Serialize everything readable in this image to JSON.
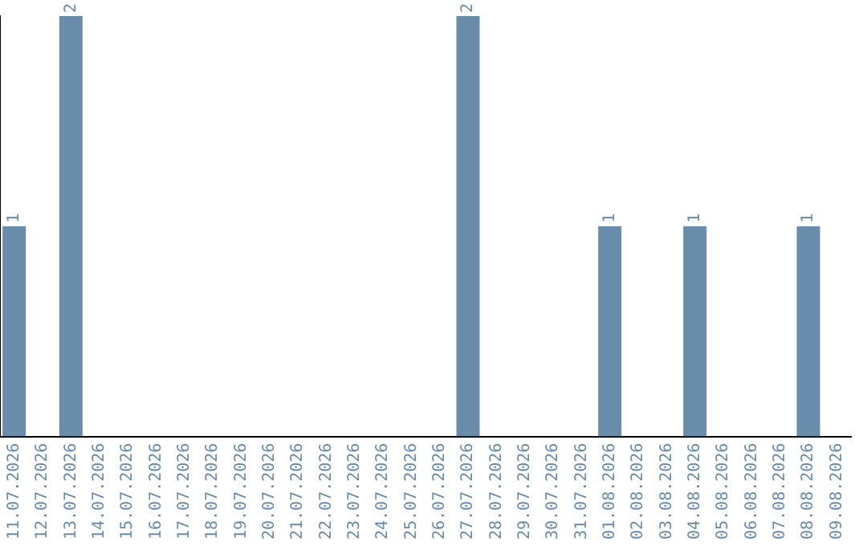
{
  "chart_data": {
    "type": "bar",
    "categories": [
      "11.07.2026",
      "12.07.2026",
      "13.07.2026",
      "14.07.2026",
      "15.07.2026",
      "16.07.2026",
      "17.07.2026",
      "18.07.2026",
      "19.07.2026",
      "20.07.2026",
      "21.07.2026",
      "22.07.2026",
      "23.07.2026",
      "24.07.2026",
      "25.07.2026",
      "26.07.2026",
      "27.07.2026",
      "28.07.2026",
      "29.07.2026",
      "30.07.2026",
      "31.07.2026",
      "01.08.2026",
      "02.08.2026",
      "03.08.2026",
      "04.08.2026",
      "05.08.2026",
      "06.08.2026",
      "07.08.2026",
      "08.08.2026",
      "09.08.2026"
    ],
    "values": [
      1,
      0,
      2,
      0,
      0,
      0,
      0,
      0,
      0,
      0,
      0,
      0,
      0,
      0,
      0,
      0,
      2,
      0,
      0,
      0,
      0,
      1,
      0,
      0,
      1,
      0,
      0,
      0,
      1,
      0
    ],
    "value_labels": [
      "1",
      null,
      "2",
      null,
      null,
      null,
      null,
      null,
      null,
      null,
      null,
      null,
      null,
      null,
      null,
      null,
      "2",
      null,
      null,
      null,
      null,
      "1",
      null,
      null,
      "1",
      null,
      null,
      null,
      "1",
      null
    ],
    "color": "#6a8cab",
    "tick_labels": "x",
    "grid": false,
    "legend": false
  }
}
